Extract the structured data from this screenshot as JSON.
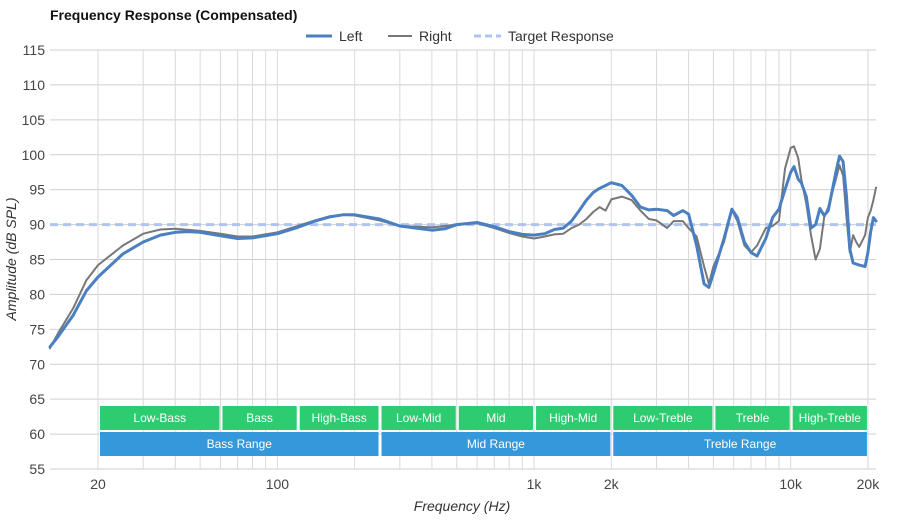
{
  "chart_data": {
    "type": "line",
    "title": "Frequency Response (Compensated)",
    "xlabel": "Frequency (Hz)",
    "ylabel": "Amplitude (dB SPL)",
    "x_scale": "log",
    "xlim": [
      13,
      21500
    ],
    "ylim": [
      55,
      115
    ],
    "x_ticks": [
      {
        "value": 20,
        "label": "20"
      },
      {
        "value": 100,
        "label": "100"
      },
      {
        "value": 1000,
        "label": "1k"
      },
      {
        "value": 2000,
        "label": "2k"
      },
      {
        "value": 10000,
        "label": "10k"
      },
      {
        "value": 20000,
        "label": "20k"
      }
    ],
    "y_ticks": [
      55,
      60,
      65,
      70,
      75,
      80,
      85,
      90,
      95,
      100,
      105,
      110,
      115
    ],
    "grid": true,
    "legend_position": "top-center",
    "series": [
      {
        "name": "Left",
        "color": "#4a7fc1",
        "style": "solid",
        "points": [
          [
            13,
            72.5
          ],
          [
            14,
            74
          ],
          [
            16,
            77
          ],
          [
            18,
            80.5
          ],
          [
            20,
            82.5
          ],
          [
            25,
            85.8
          ],
          [
            30,
            87.5
          ],
          [
            35,
            88.5
          ],
          [
            40,
            88.9
          ],
          [
            45,
            89
          ],
          [
            50,
            88.9
          ],
          [
            60,
            88.4
          ],
          [
            70,
            88
          ],
          [
            80,
            88.1
          ],
          [
            100,
            88.7
          ],
          [
            120,
            89.6
          ],
          [
            140,
            90.5
          ],
          [
            160,
            91.1
          ],
          [
            180,
            91.4
          ],
          [
            200,
            91.4
          ],
          [
            250,
            90.8
          ],
          [
            300,
            89.8
          ],
          [
            400,
            89.2
          ],
          [
            450,
            89.4
          ],
          [
            500,
            90
          ],
          [
            600,
            90.3
          ],
          [
            700,
            89.7
          ],
          [
            800,
            89
          ],
          [
            900,
            88.6
          ],
          [
            1000,
            88.5
          ],
          [
            1100,
            88.7
          ],
          [
            1200,
            89.3
          ],
          [
            1300,
            89.5
          ],
          [
            1400,
            90.5
          ],
          [
            1500,
            92
          ],
          [
            1600,
            93.5
          ],
          [
            1700,
            94.6
          ],
          [
            1800,
            95.2
          ],
          [
            1900,
            95.6
          ],
          [
            2000,
            96
          ],
          [
            2200,
            95.6
          ],
          [
            2400,
            94.2
          ],
          [
            2600,
            92.5
          ],
          [
            2800,
            92.1
          ],
          [
            3000,
            92.2
          ],
          [
            3300,
            92
          ],
          [
            3500,
            91.3
          ],
          [
            3800,
            92
          ],
          [
            4000,
            91.5
          ],
          [
            4300,
            87
          ],
          [
            4600,
            81.5
          ],
          [
            4800,
            81
          ],
          [
            5000,
            83
          ],
          [
            5500,
            88
          ],
          [
            5900,
            92.2
          ],
          [
            6200,
            91
          ],
          [
            6600,
            87.5
          ],
          [
            7000,
            86
          ],
          [
            7400,
            85.5
          ],
          [
            8000,
            88
          ],
          [
            8500,
            91
          ],
          [
            9000,
            92.2
          ],
          [
            9500,
            95
          ],
          [
            10000,
            97.5
          ],
          [
            10300,
            98.3
          ],
          [
            10700,
            96.5
          ],
          [
            11000,
            96
          ],
          [
            11500,
            94
          ],
          [
            12000,
            89.5
          ],
          [
            12500,
            90
          ],
          [
            13000,
            92.3
          ],
          [
            13500,
            91.3
          ],
          [
            14000,
            92
          ],
          [
            15000,
            97.5
          ],
          [
            15500,
            99.8
          ],
          [
            16000,
            99
          ],
          [
            16500,
            94
          ],
          [
            17000,
            86.5
          ],
          [
            17500,
            84.5
          ],
          [
            18500,
            84.2
          ],
          [
            19500,
            84
          ],
          [
            20000,
            86
          ],
          [
            20500,
            89
          ],
          [
            21000,
            91
          ],
          [
            21500,
            90.5
          ]
        ]
      },
      {
        "name": "Right",
        "color": "#777777",
        "style": "solid",
        "points": [
          [
            13,
            72.3
          ],
          [
            14,
            74.5
          ],
          [
            16,
            78
          ],
          [
            18,
            82
          ],
          [
            20,
            84.2
          ],
          [
            25,
            87
          ],
          [
            30,
            88.7
          ],
          [
            35,
            89.3
          ],
          [
            40,
            89.4
          ],
          [
            50,
            89.1
          ],
          [
            60,
            88.7
          ],
          [
            70,
            88.3
          ],
          [
            80,
            88.3
          ],
          [
            100,
            88.9
          ],
          [
            120,
            89.8
          ],
          [
            140,
            90.6
          ],
          [
            160,
            91.2
          ],
          [
            180,
            91.4
          ],
          [
            200,
            91.3
          ],
          [
            250,
            90.6
          ],
          [
            300,
            89.8
          ],
          [
            400,
            89.6
          ],
          [
            450,
            89.8
          ],
          [
            500,
            90
          ],
          [
            600,
            90.2
          ],
          [
            700,
            89.5
          ],
          [
            800,
            88.8
          ],
          [
            900,
            88.3
          ],
          [
            1000,
            88
          ],
          [
            1100,
            88.3
          ],
          [
            1200,
            88.6
          ],
          [
            1300,
            88.7
          ],
          [
            1400,
            89.5
          ],
          [
            1500,
            90
          ],
          [
            1600,
            90.8
          ],
          [
            1700,
            91.8
          ],
          [
            1800,
            92.5
          ],
          [
            1900,
            92
          ],
          [
            2000,
            93.6
          ],
          [
            2200,
            94
          ],
          [
            2400,
            93.5
          ],
          [
            2600,
            92
          ],
          [
            2800,
            90.8
          ],
          [
            3000,
            90.6
          ],
          [
            3300,
            89.5
          ],
          [
            3500,
            90.5
          ],
          [
            3800,
            90.5
          ],
          [
            4000,
            89.5
          ],
          [
            4300,
            88.3
          ],
          [
            4600,
            84
          ],
          [
            4800,
            81.5
          ],
          [
            5000,
            84
          ],
          [
            5500,
            87.5
          ],
          [
            5900,
            92.1
          ],
          [
            6200,
            90.5
          ],
          [
            6600,
            87
          ],
          [
            7000,
            86
          ],
          [
            7400,
            87
          ],
          [
            8000,
            89.5
          ],
          [
            8500,
            89.8
          ],
          [
            9000,
            90.5
          ],
          [
            9500,
            98
          ],
          [
            10000,
            101
          ],
          [
            10300,
            101.2
          ],
          [
            10700,
            99.5
          ],
          [
            11000,
            96.5
          ],
          [
            11500,
            93
          ],
          [
            12000,
            88.5
          ],
          [
            12500,
            85
          ],
          [
            13000,
            86.5
          ],
          [
            13500,
            91
          ],
          [
            14000,
            92.5
          ],
          [
            15000,
            96.5
          ],
          [
            15500,
            98.5
          ],
          [
            16000,
            97
          ],
          [
            16500,
            91
          ],
          [
            17000,
            86
          ],
          [
            17500,
            88.5
          ],
          [
            18000,
            87.5
          ],
          [
            18500,
            86.8
          ],
          [
            19500,
            88.5
          ],
          [
            20000,
            91
          ],
          [
            20500,
            92
          ],
          [
            21000,
            93.5
          ],
          [
            21500,
            95.3
          ]
        ]
      },
      {
        "name": "Target Response",
        "color": "#aec4f2",
        "style": "dashed",
        "points": [
          [
            13,
            90
          ],
          [
            21500,
            90
          ]
        ]
      }
    ],
    "bands": [
      {
        "row": 1,
        "label": "Low-Bass",
        "from": 20,
        "to": 60,
        "color": "#2ecc71"
      },
      {
        "row": 1,
        "label": "Bass",
        "from": 60,
        "to": 120,
        "color": "#2ecc71"
      },
      {
        "row": 1,
        "label": "High-Bass",
        "from": 120,
        "to": 250,
        "color": "#2ecc71"
      },
      {
        "row": 1,
        "label": "Low-Mid",
        "from": 250,
        "to": 500,
        "color": "#2ecc71"
      },
      {
        "row": 1,
        "label": "Mid",
        "from": 500,
        "to": 1000,
        "color": "#2ecc71"
      },
      {
        "row": 1,
        "label": "High-Mid",
        "from": 1000,
        "to": 2000,
        "color": "#2ecc71"
      },
      {
        "row": 1,
        "label": "Low-Treble",
        "from": 2000,
        "to": 5000,
        "color": "#2ecc71"
      },
      {
        "row": 1,
        "label": "Treble",
        "from": 5000,
        "to": 10000,
        "color": "#2ecc71"
      },
      {
        "row": 1,
        "label": "High-Treble",
        "from": 10000,
        "to": 20000,
        "color": "#2ecc71"
      },
      {
        "row": 2,
        "label": "Bass Range",
        "from": 20,
        "to": 250,
        "color": "#3498db"
      },
      {
        "row": 2,
        "label": "Mid Range",
        "from": 250,
        "to": 2000,
        "color": "#3498db"
      },
      {
        "row": 2,
        "label": "Treble Range",
        "from": 2000,
        "to": 20000,
        "color": "#3498db"
      }
    ]
  }
}
